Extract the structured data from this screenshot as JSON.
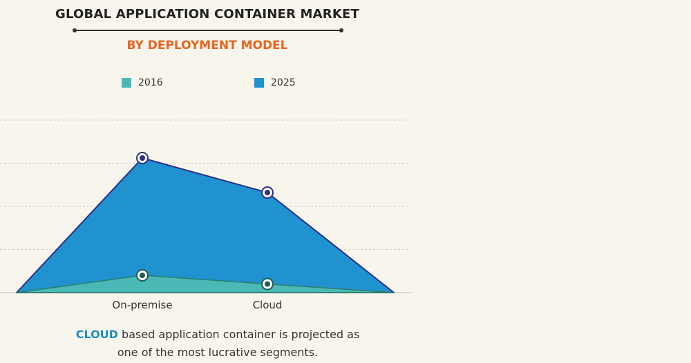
{
  "chart_data": {
    "type": "area",
    "title": "GLOBAL  APPLICATION CONTAINER MARKET",
    "subtitle": "BY DEPLOYMENT MODEL",
    "categories": [
      "On-premise",
      "Cloud"
    ],
    "series": [
      {
        "name": "2016",
        "values": [
          0.1,
          0.05
        ],
        "color": "#4ab9b5"
      },
      {
        "name": "2025",
        "values": [
          0.78,
          0.58
        ],
        "color": "#1f92cf"
      }
    ],
    "ylim": [
      0,
      1
    ],
    "xlabel": "",
    "ylabel": "",
    "grid": true,
    "legend_position": "top"
  },
  "caption": {
    "highlight": "CLOUD",
    "line1_rest": " based application container is projected as",
    "line2": "one of the most lucrative segments."
  },
  "colors": {
    "background": "#f8f5ec",
    "outline": "#2b2f8a",
    "grid": "#cfcfcf",
    "accent": "#e8641f"
  }
}
